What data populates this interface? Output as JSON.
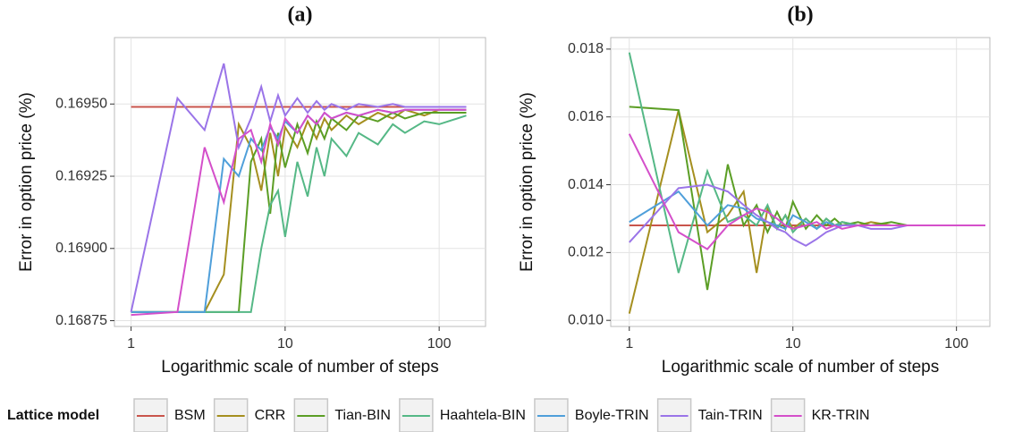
{
  "chart_data": [
    {
      "type": "line",
      "title": "(a)",
      "x_label": "Logarithmic scale of number of steps",
      "y_label": "Error in option price (%)",
      "legend_title": "Lattice model",
      "xlog": true,
      "grid": true,
      "x": [
        1,
        2,
        3,
        4,
        5,
        6,
        7,
        8,
        9,
        10,
        12,
        14,
        16,
        18,
        20,
        25,
        30,
        40,
        50,
        60,
        80,
        100,
        150
      ],
      "xlim": [
        0.78,
        200
      ],
      "xticks": [
        1,
        10,
        100
      ],
      "ylim": [
        0.16873,
        0.16973
      ],
      "yticks": [
        0.16875,
        {
          "value": 0.169,
          "label": "0.16900"
        },
        0.16925,
        {
          "value": 0.1695,
          "label": "0.16950"
        }
      ],
      "series": [
        {
          "name": "BSM",
          "color": "#c9554c",
          "values": [
            0.16949,
            0.16949,
            0.16949,
            0.16949,
            0.16949,
            0.16949,
            0.16949,
            0.16949,
            0.16949,
            0.16949,
            0.16949,
            0.16949,
            0.16949,
            0.16949,
            0.16949,
            0.16949,
            0.16949,
            0.16949,
            0.16949,
            0.16949,
            0.16949,
            0.16949,
            0.16949
          ]
        },
        {
          "name": "CRR",
          "color": "#a58f1f",
          "values": [
            0.16878,
            0.16878,
            0.16878,
            0.16891,
            0.16943,
            0.16935,
            0.1692,
            0.1694,
            0.16925,
            0.16942,
            0.16935,
            0.16944,
            0.16938,
            0.16945,
            0.16941,
            0.16946,
            0.16943,
            0.16947,
            0.16945,
            0.16948,
            0.16946,
            0.16948,
            0.16948
          ]
        },
        {
          "name": "Tian-BIN",
          "color": "#5b9e25",
          "values": [
            0.16878,
            0.16878,
            0.16878,
            0.16878,
            0.16878,
            0.1693,
            0.16938,
            0.16912,
            0.1694,
            0.16928,
            0.16943,
            0.16933,
            0.16944,
            0.16938,
            0.16945,
            0.16941,
            0.16946,
            0.16944,
            0.16947,
            0.16945,
            0.16947,
            0.16947,
            0.16947
          ]
        },
        {
          "name": "Haahtela-BIN",
          "color": "#55b886",
          "values": [
            0.16878,
            0.16878,
            0.16878,
            0.16878,
            0.16878,
            0.16878,
            0.169,
            0.16915,
            0.1692,
            0.16904,
            0.1693,
            0.16918,
            0.16935,
            0.16925,
            0.16938,
            0.16932,
            0.1694,
            0.16936,
            0.16943,
            0.1694,
            0.16944,
            0.16943,
            0.16946
          ]
        },
        {
          "name": "Boyle-TRIN",
          "color": "#4f9fda",
          "values": [
            0.16878,
            0.16878,
            0.16878,
            0.16931,
            0.16925,
            0.16938,
            0.16934,
            0.16942,
            0.16938,
            0.16944,
            0.1694,
            0.16946,
            0.16943,
            0.16947,
            0.16945,
            0.16947,
            0.16946,
            0.16948,
            0.16947,
            0.16948,
            0.16948,
            0.16948,
            0.16948
          ]
        },
        {
          "name": "Tain-TRIN",
          "color": "#9a74e8",
          "values": [
            0.16878,
            0.16952,
            0.16941,
            0.16964,
            0.16935,
            0.16945,
            0.16956,
            0.16944,
            0.16953,
            0.16946,
            0.16952,
            0.16947,
            0.16951,
            0.16948,
            0.1695,
            0.16948,
            0.1695,
            0.16949,
            0.1695,
            0.16949,
            0.16949,
            0.16949,
            0.16949
          ]
        },
        {
          "name": "KR-TRIN",
          "color": "#d44fca",
          "values": [
            0.16877,
            0.16878,
            0.16935,
            0.16916,
            0.16938,
            0.16941,
            0.1693,
            0.16943,
            0.16936,
            0.16945,
            0.1694,
            0.16946,
            0.16943,
            0.16947,
            0.16945,
            0.16947,
            0.16946,
            0.16948,
            0.16947,
            0.16948,
            0.16948,
            0.16948,
            0.16948
          ]
        }
      ]
    },
    {
      "type": "line",
      "title": "(b)",
      "x_label": "Logarithmic scale of number of steps",
      "y_label": "Error in option price (%)",
      "xlog": true,
      "grid": true,
      "x": [
        1,
        2,
        3,
        4,
        5,
        6,
        7,
        8,
        9,
        10,
        12,
        14,
        16,
        18,
        20,
        25,
        30,
        40,
        50,
        60,
        80,
        100,
        150
      ],
      "xlim": [
        0.77,
        160
      ],
      "xticks": [
        1,
        10,
        100
      ],
      "ylim": [
        0.00982,
        0.01834
      ],
      "yticks": [
        {
          "value": 0.01,
          "label": "0.010"
        },
        0.012,
        0.014,
        0.016,
        0.018
      ],
      "series": [
        {
          "name": "BSM",
          "color": "#c9554c",
          "values": [
            0.0128,
            0.0128,
            0.0128,
            0.0128,
            0.0128,
            0.0128,
            0.0128,
            0.0128,
            0.0128,
            0.0128,
            0.0128,
            0.0128,
            0.0128,
            0.0128,
            0.0128,
            0.0128,
            0.0128,
            0.0128,
            0.0128,
            0.0128,
            0.0128,
            0.0128,
            0.0128
          ]
        },
        {
          "name": "CRR",
          "color": "#a58f1f",
          "values": [
            0.0102,
            0.0162,
            0.0126,
            0.0131,
            0.0138,
            0.0114,
            0.0133,
            0.0127,
            0.0131,
            0.0127,
            0.013,
            0.0127,
            0.013,
            0.0128,
            0.0129,
            0.0128,
            0.0129,
            0.0128,
            0.0128,
            0.0128,
            0.0128,
            0.0128,
            0.0128
          ]
        },
        {
          "name": "Tian-BIN",
          "color": "#5b9e25",
          "values": [
            0.0163,
            0.0162,
            0.0109,
            0.0146,
            0.0128,
            0.0134,
            0.0126,
            0.0132,
            0.0127,
            0.0135,
            0.0127,
            0.0131,
            0.0128,
            0.013,
            0.0128,
            0.0129,
            0.0128,
            0.0129,
            0.0128,
            0.0128,
            0.0128,
            0.0128,
            0.0128
          ]
        },
        {
          "name": "Haahtela-BIN",
          "color": "#55b886",
          "values": [
            0.0179,
            0.0114,
            0.0144,
            0.0129,
            0.0131,
            0.0128,
            0.0134,
            0.0127,
            0.0131,
            0.0126,
            0.013,
            0.0127,
            0.013,
            0.0128,
            0.0129,
            0.0128,
            0.0128,
            0.0128,
            0.0128,
            0.0128,
            0.0128,
            0.0128,
            0.0128
          ]
        },
        {
          "name": "Boyle-TRIN",
          "color": "#4f9fda",
          "values": [
            0.0129,
            0.0138,
            0.0128,
            0.0134,
            0.0133,
            0.013,
            0.0129,
            0.0128,
            0.0127,
            0.0131,
            0.0129,
            0.0127,
            0.0129,
            0.0128,
            0.0128,
            0.0128,
            0.0128,
            0.0128,
            0.0128,
            0.0128,
            0.0128,
            0.0128,
            0.0128
          ]
        },
        {
          "name": "Tain-TRIN",
          "color": "#9a74e8",
          "values": [
            0.0123,
            0.0139,
            0.014,
            0.0138,
            0.0134,
            0.0131,
            0.0129,
            0.0127,
            0.0126,
            0.0124,
            0.0122,
            0.0124,
            0.0126,
            0.0127,
            0.0128,
            0.0128,
            0.0127,
            0.0127,
            0.0128,
            0.0128,
            0.0128,
            0.0128,
            0.0128
          ]
        },
        {
          "name": "KR-TRIN",
          "color": "#d44fca",
          "values": [
            0.0155,
            0.0126,
            0.0121,
            0.0128,
            0.0131,
            0.0133,
            0.0132,
            0.013,
            0.0128,
            0.0127,
            0.0128,
            0.0129,
            0.0127,
            0.0128,
            0.0127,
            0.0128,
            0.0128,
            0.0128,
            0.0128,
            0.0128,
            0.0128,
            0.0128,
            0.0128
          ]
        }
      ]
    }
  ]
}
